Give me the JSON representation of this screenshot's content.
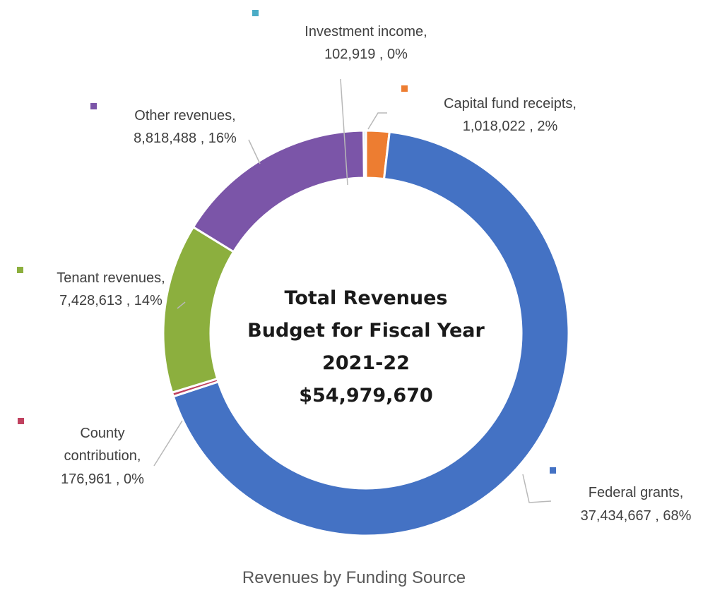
{
  "chart_data": {
    "type": "pie",
    "subtype": "donut",
    "title": "Revenues by Funding Source",
    "center_text": [
      "Total Revenues",
      "Budget for Fiscal Year",
      "2021-22",
      "$54,979,670"
    ],
    "slices": [
      {
        "name": "Capital fund receipts",
        "value": 1018022,
        "percent_label": "2%",
        "label_line1": "Capital fund receipts,",
        "label_line2": "1,018,022 , 2%",
        "color": "#ED7D31"
      },
      {
        "name": "Federal grants",
        "value": 37434667,
        "percent_label": "68%",
        "label_line1": "Federal grants,",
        "label_line2": "37,434,667 , 68%",
        "color": "#4472C4"
      },
      {
        "name": "County contribution",
        "value": 176961,
        "percent_label": "0%",
        "label_line1": "County",
        "label_line2": "contribution,",
        "label_line3": "176,961 , 0%",
        "color": "#C0415F"
      },
      {
        "name": "Tenant revenues",
        "value": 7428613,
        "percent_label": "14%",
        "label_line1": "Tenant revenues,",
        "label_line2": "7,428,613 , 14%",
        "color": "#8CAF3E"
      },
      {
        "name": "Other revenues",
        "value": 8818488,
        "percent_label": "16%",
        "label_line1": "Other revenues,",
        "label_line2": "8,818,488 , 16%",
        "color": "#7B55A8"
      },
      {
        "name": "Investment income",
        "value": 102919,
        "percent_label": "0%",
        "label_line1": "Investment income,",
        "label_line2": "102,919 , 0%",
        "color": "#4BACC6"
      }
    ]
  }
}
